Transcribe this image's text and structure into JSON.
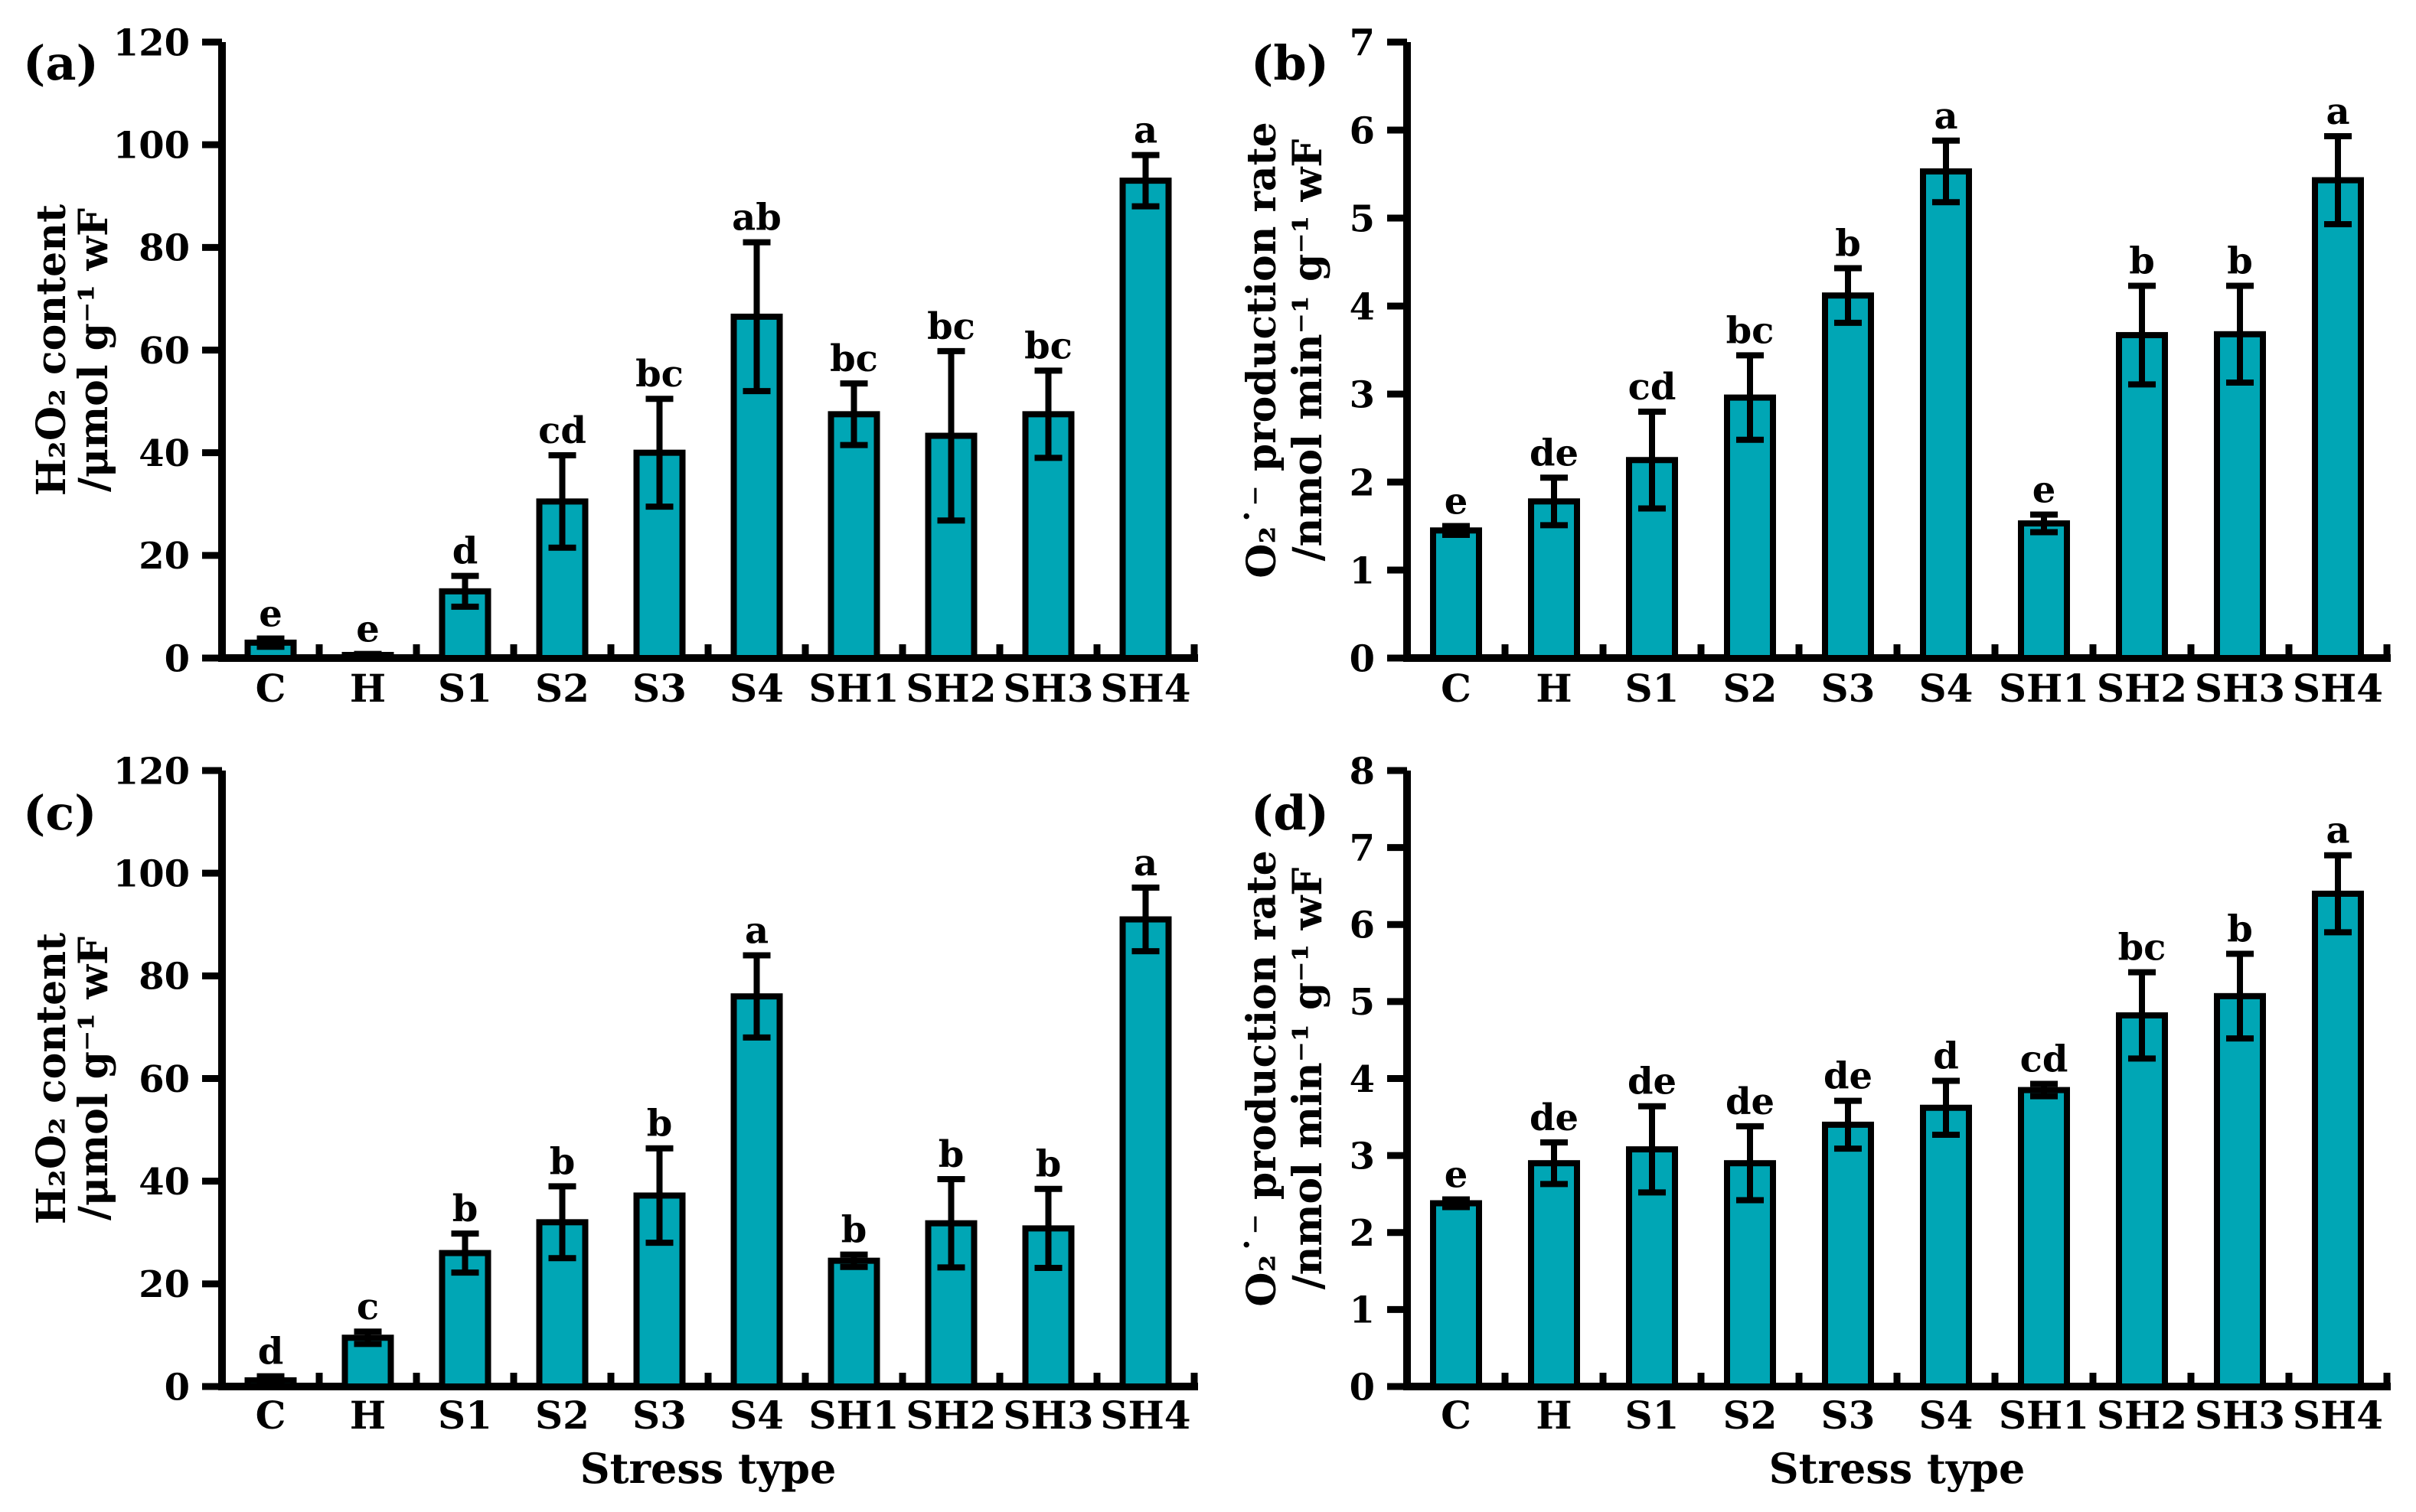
{
  "figure": {
    "background": "#ffffff",
    "x_axis_label": "Stress type"
  },
  "colors": {
    "bar_fill": "#00a6b5",
    "bar_edge": "#000000",
    "axis": "#000000",
    "error_bar": "#000000",
    "text": "#000000"
  },
  "categories": [
    "C",
    "H",
    "S1",
    "S2",
    "S3",
    "S4",
    "SH1",
    "SH2",
    "SH3",
    "SH4"
  ],
  "chart_data": [
    {
      "id": "a",
      "panel_label": "(a)",
      "type": "bar",
      "title": "",
      "ylabel_line1": "H₂O₂ content",
      "ylabel_line2": "/μmol g⁻¹ wF",
      "xlabel": "",
      "ylim": [
        0,
        120
      ],
      "ytick_step": 20,
      "ytick_labels": [
        "0",
        "20",
        "40",
        "60",
        "80",
        "100",
        "120"
      ],
      "grid": false,
      "legend": "none",
      "categories": [
        "C",
        "H",
        "S1",
        "S2",
        "S3",
        "S4",
        "SH1",
        "SH2",
        "SH3",
        "SH4"
      ],
      "values": [
        3.0,
        0.6,
        13.0,
        30.5,
        40.0,
        66.5,
        47.5,
        43.3,
        47.5,
        93.0
      ],
      "errors": [
        0.8,
        0.2,
        3.0,
        9.0,
        10.5,
        14.5,
        6.0,
        16.5,
        8.5,
        5.0
      ],
      "sig_letters": [
        "e",
        "e",
        "d",
        "cd",
        "bc",
        "ab",
        "bc",
        "bc",
        "bc",
        "a"
      ]
    },
    {
      "id": "b",
      "panel_label": "(b)",
      "type": "bar",
      "title": "",
      "ylabel_line1": "O₂˙⁻ production rate",
      "ylabel_line2": "/nmol min⁻¹ g⁻¹ wF",
      "xlabel": "",
      "ylim": [
        0,
        7
      ],
      "ytick_step": 1,
      "ytick_labels": [
        "0",
        "1",
        "2",
        "3",
        "4",
        "5",
        "6",
        "7"
      ],
      "grid": false,
      "legend": "none",
      "categories": [
        "C",
        "H",
        "S1",
        "S2",
        "S3",
        "S4",
        "SH1",
        "SH2",
        "SH3",
        "SH4"
      ],
      "values": [
        1.45,
        1.78,
        2.25,
        2.96,
        4.12,
        5.53,
        1.53,
        3.67,
        3.68,
        5.43
      ],
      "errors": [
        0.05,
        0.27,
        0.55,
        0.48,
        0.31,
        0.35,
        0.1,
        0.56,
        0.55,
        0.5
      ],
      "sig_letters": [
        "e",
        "de",
        "cd",
        "bc",
        "b",
        "a",
        "e",
        "b",
        "b",
        "a"
      ]
    },
    {
      "id": "c",
      "panel_label": "(c)",
      "type": "bar",
      "title": "",
      "ylabel_line1": "H₂O₂ content",
      "ylabel_line2": "/μmol g⁻¹ wF",
      "xlabel": "Stress type",
      "ylim": [
        0,
        120
      ],
      "ytick_step": 20,
      "ytick_labels": [
        "0",
        "20",
        "40",
        "60",
        "80",
        "100",
        "120"
      ],
      "grid": false,
      "legend": "none",
      "categories": [
        "C",
        "H",
        "S1",
        "S2",
        "S3",
        "S4",
        "SH1",
        "SH2",
        "SH3",
        "SH4"
      ],
      "values": [
        1.2,
        9.5,
        26.0,
        32.0,
        37.2,
        76.0,
        24.5,
        31.8,
        30.8,
        91.0
      ],
      "errors": [
        0.8,
        1.2,
        3.8,
        7.0,
        9.2,
        8.0,
        1.2,
        8.6,
        7.7,
        6.2
      ],
      "sig_letters": [
        "d",
        "c",
        "b",
        "b",
        "b",
        "a",
        "b",
        "b",
        "b",
        "a"
      ]
    },
    {
      "id": "d",
      "panel_label": "(d)",
      "type": "bar",
      "title": "",
      "ylabel_line1": "O₂˙⁻ production rate",
      "ylabel_line2": "/nmol min⁻¹ g⁻¹ wF",
      "xlabel": "Stress type",
      "ylim": [
        0,
        8
      ],
      "ytick_step": 1,
      "ytick_labels": [
        "0",
        "1",
        "2",
        "3",
        "4",
        "5",
        "6",
        "7",
        "8"
      ],
      "grid": false,
      "legend": "none",
      "categories": [
        "C",
        "H",
        "S1",
        "S2",
        "S3",
        "S4",
        "SH1",
        "SH2",
        "SH3",
        "SH4"
      ],
      "values": [
        2.38,
        2.9,
        3.08,
        2.9,
        3.4,
        3.62,
        3.85,
        4.82,
        5.07,
        6.4
      ],
      "errors": [
        0.05,
        0.27,
        0.56,
        0.48,
        0.31,
        0.35,
        0.08,
        0.56,
        0.55,
        0.5
      ],
      "sig_letters": [
        "e",
        "de",
        "de",
        "de",
        "de",
        "d",
        "cd",
        "bc",
        "b",
        "a"
      ]
    }
  ]
}
